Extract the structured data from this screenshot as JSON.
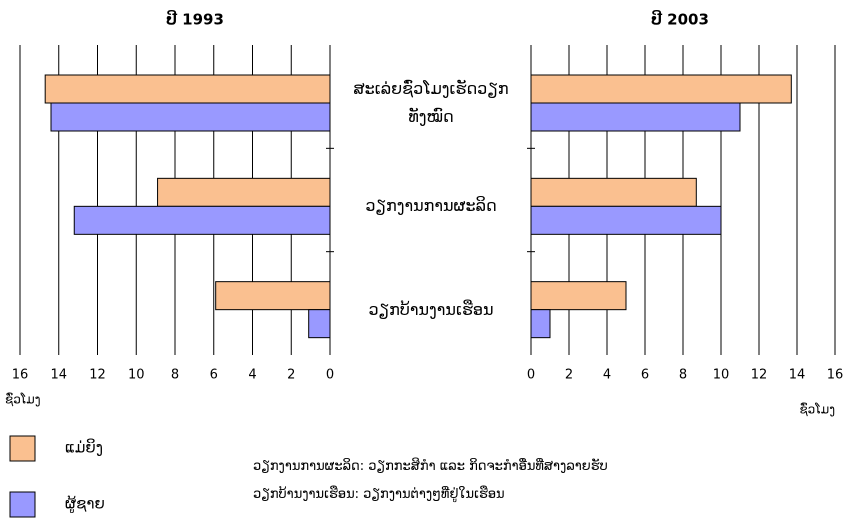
{
  "chart_data": [
    {
      "type": "bar",
      "orientation": "horizontal",
      "title": "ປີ 1993",
      "x_label": "ຊົ່ວໂມງ",
      "categories": [
        "ສະເລ່ຍຊົ່ວໂມງເຮັດວຽກທັງໝົດ",
        "ວຽກງານການຜະລິດ",
        "ວຽກບ້ານງານເຮືອນ"
      ],
      "series": [
        {
          "name": "ແມ່ຍິງ",
          "color": "#fac090",
          "values": [
            14.7,
            8.9,
            5.9
          ]
        },
        {
          "name": "ຜູ້ຊາຍ",
          "color": "#9999ff",
          "values": [
            14.4,
            13.2,
            1.1
          ]
        }
      ],
      "xlim": [
        16,
        0
      ],
      "xticks": [
        16,
        14,
        12,
        10,
        8,
        6,
        4,
        2,
        0
      ],
      "grid": true
    },
    {
      "type": "bar",
      "orientation": "horizontal",
      "title": "ປີ 2003",
      "x_label": "ຊົ່ວໂມງ",
      "series": [
        {
          "color": "#fac090",
          "values": [
            13.7,
            8.7,
            5.0
          ]
        },
        {
          "color": "#9999ff",
          "values": [
            11.0,
            10.0,
            1.0
          ]
        }
      ],
      "xlim": [
        0,
        16
      ],
      "xticks": [
        0,
        2,
        4,
        6,
        8,
        10,
        12,
        14,
        16
      ],
      "grid": true
    }
  ],
  "annotations": [
    "ວຽກງານການຜະລິດ: ວຽກກະສິກຳ ແລະ ກິດຈະກຳອື່ນທີ່ສາງລາຍຮັບ",
    "ວຽກບ້ານງານເຮືອນ: ວຽກງານຕ່າງໆທີ່ຢູ່ໃນເຮືອນ"
  ]
}
